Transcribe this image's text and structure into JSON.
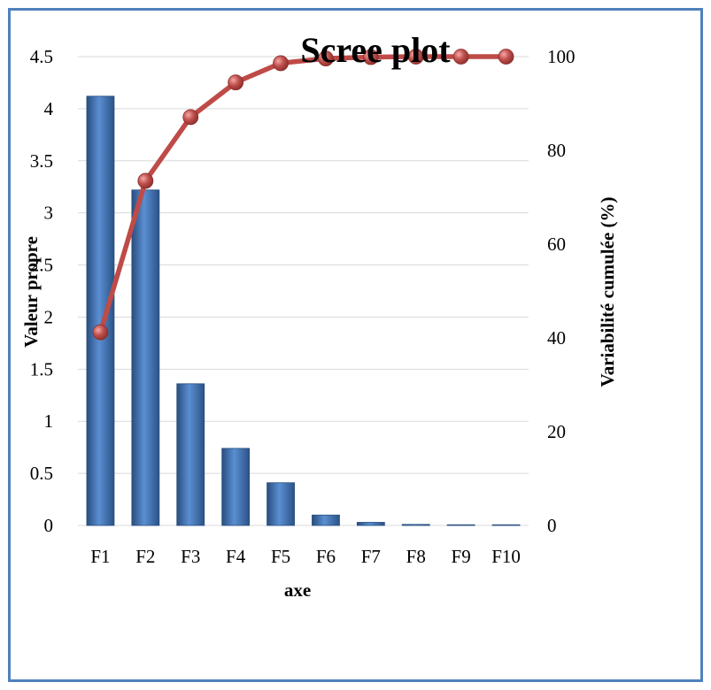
{
  "chart_data": {
    "type": "bar",
    "title": "Scree plot",
    "xlabel": "axe",
    "ylabel": "Valeur propre",
    "y2label": "Variabilité cumulée (%)",
    "categories": [
      "F1",
      "F2",
      "F3",
      "F4",
      "F5",
      "F6",
      "F7",
      "F8",
      "F9",
      "F10"
    ],
    "ylim": [
      0,
      4.5
    ],
    "yticks": [
      "0",
      "0.5",
      "1",
      "1.5",
      "2",
      "2.5",
      "3",
      "3.5",
      "4",
      "4.5"
    ],
    "y2lim": [
      0,
      100
    ],
    "y2ticks": [
      "0",
      "20",
      "40",
      "60",
      "80",
      "100"
    ],
    "grid": true,
    "series": [
      {
        "type": "bar",
        "axis": "left",
        "values": [
          4.12,
          3.22,
          1.36,
          0.74,
          0.41,
          0.1,
          0.03,
          0.01,
          0.005,
          0.003
        ]
      },
      {
        "type": "line",
        "axis": "right",
        "values": [
          41.2,
          73.5,
          87.1,
          94.5,
          98.6,
          99.6,
          99.9,
          100,
          100,
          100
        ]
      }
    ],
    "colors": {
      "bar": "#4a7ebb",
      "bar_dark": "#284e7e",
      "line": "#be4b48",
      "marker": "#c0504d",
      "grid": "#d9d9d9"
    }
  }
}
